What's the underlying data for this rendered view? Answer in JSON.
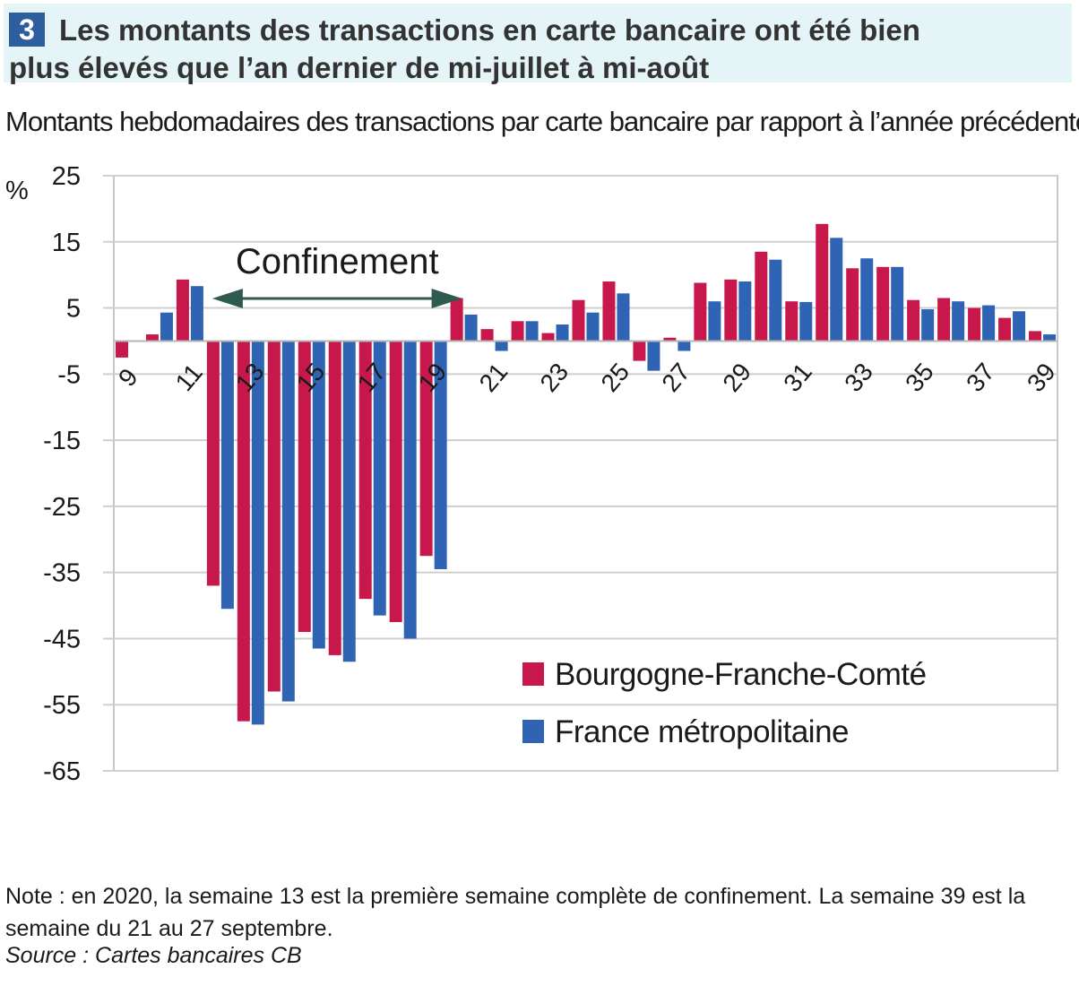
{
  "figure": {
    "number": "3",
    "title_line1": "Les montants des transactions en carte bancaire ont été bien",
    "title_line2": "plus élevés que l’an dernier de mi-juillet à mi-août",
    "subtitle": "Montants hebdomadaires des transactions par carte bancaire par rapport à l’année précédente",
    "note": "Note : en 2020, la semaine 13 est la première semaine complète de confinement. La semaine 39 est la semaine du 21 au 27 septembre.",
    "source": "Source : Cartes bancaires CB"
  },
  "colors": {
    "bourgogne": "#c8174a",
    "france": "#2f64b4",
    "arrow": "#2f5a50",
    "title_bg": "#e4f4f7",
    "number_bg": "#2d5f9e"
  },
  "chart_data": {
    "type": "bar",
    "ylabel": "%",
    "ylim": [
      -65,
      25
    ],
    "yticks": [
      25,
      15,
      5,
      -5,
      -15,
      -25,
      -35,
      -45,
      -55,
      -65
    ],
    "x": [
      9,
      10,
      11,
      12,
      13,
      14,
      15,
      16,
      17,
      18,
      19,
      20,
      21,
      22,
      23,
      24,
      25,
      26,
      27,
      28,
      29,
      30,
      31,
      32,
      33,
      34,
      35,
      36,
      37,
      38,
      39
    ],
    "x_tick_labels": [
      "9",
      "11",
      "13",
      "15",
      "17",
      "19",
      "21",
      "23",
      "25",
      "27",
      "29",
      "31",
      "33",
      "35",
      "37",
      "39"
    ],
    "series": [
      {
        "name": "Bourgogne-Franche-Comté",
        "values": [
          -2.5,
          1,
          9.3,
          -37,
          -57.5,
          -53,
          -44,
          -47.5,
          -39,
          -42.5,
          -32.5,
          6.5,
          1.8,
          3,
          1.2,
          6.2,
          9,
          -3,
          0.5,
          8.8,
          9.3,
          13.5,
          6,
          17.7,
          11,
          11.2,
          6.2,
          6.5,
          5,
          3.5,
          1.5
        ]
      },
      {
        "name": "France métropolitaine",
        "values": [
          0,
          4.3,
          8.3,
          -40.5,
          -58,
          -54.5,
          -46.5,
          -48.5,
          -41.5,
          -45,
          -34.5,
          4,
          -1.5,
          3,
          2.5,
          4.3,
          7.2,
          -4.5,
          -1.5,
          6,
          9,
          12.3,
          5.9,
          15.6,
          12.5,
          11.2,
          4.8,
          6,
          5.4,
          4.5,
          1
        ]
      }
    ],
    "annotation": {
      "label": "Confinement",
      "from_week": 12,
      "to_week": 20
    },
    "legend": "bottom-right, inside plot",
    "grid": "horizontal"
  }
}
